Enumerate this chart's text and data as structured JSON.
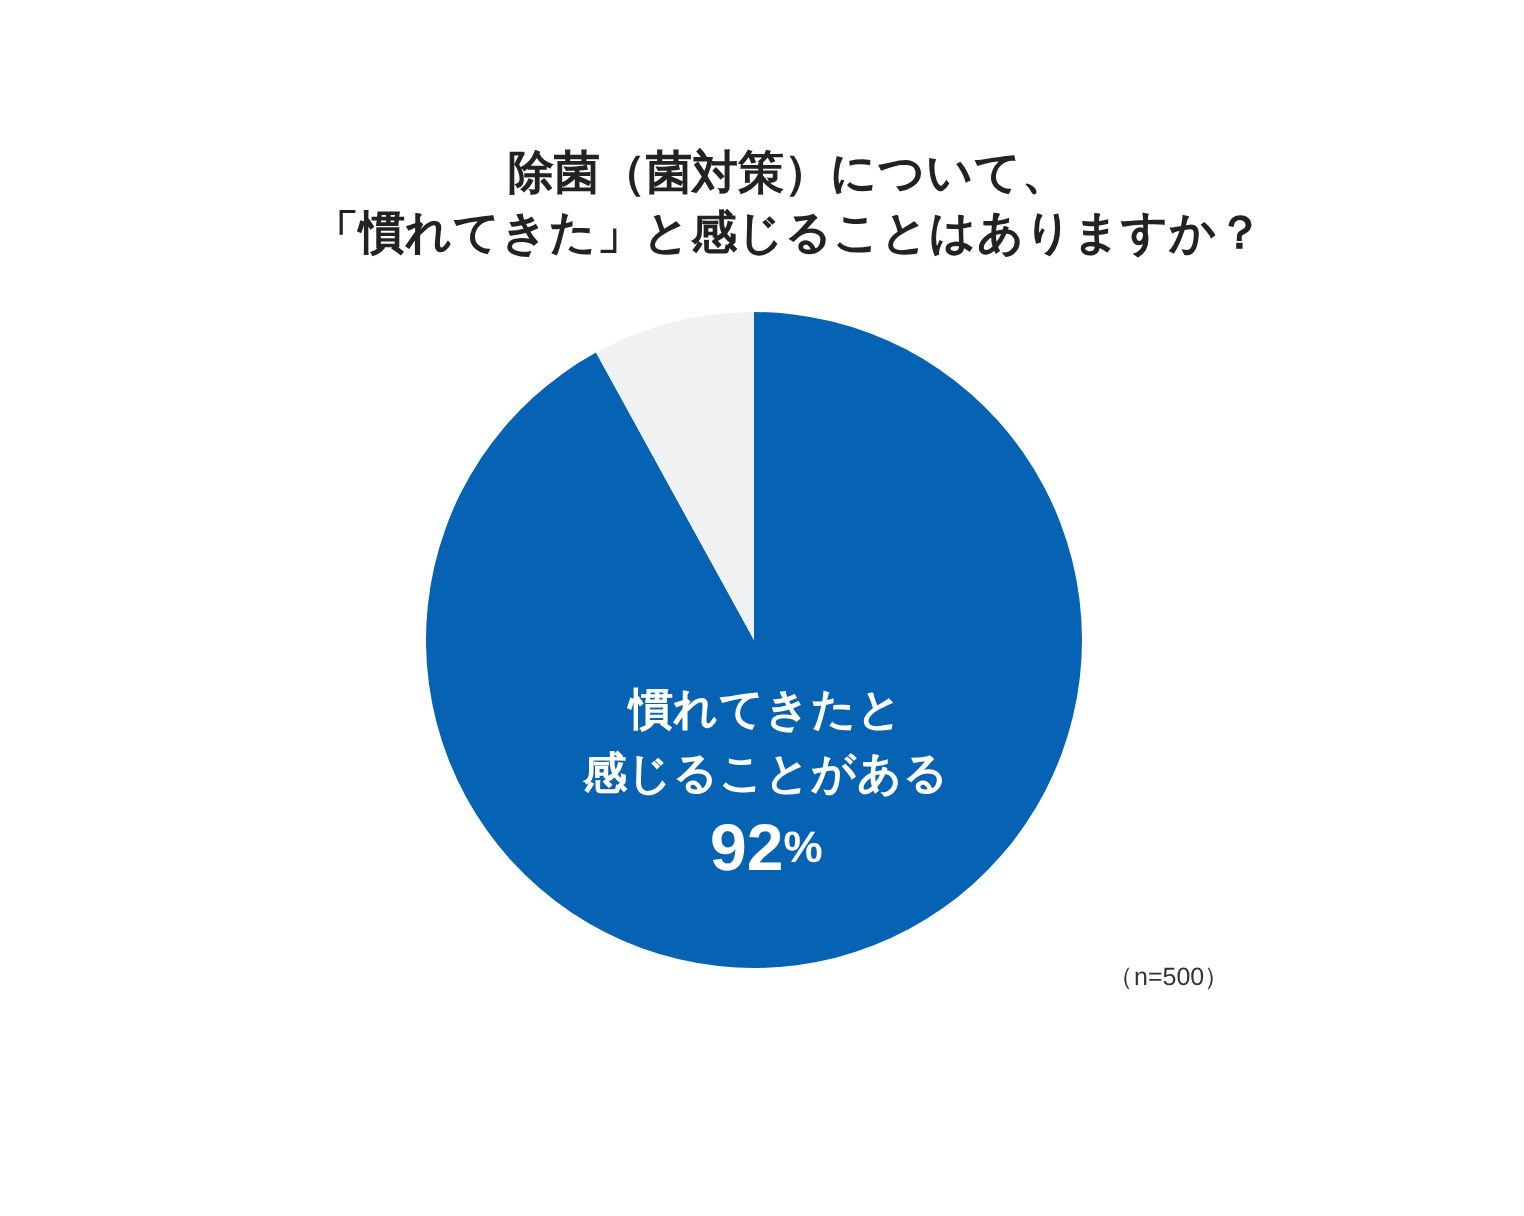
{
  "chart_data": {
    "type": "pie",
    "title": "除菌（菌対策）について、「慣れてきた」と感じることはありますか？",
    "categories": [
      "慣れてきたと感じることがある",
      null
    ],
    "values": [
      92,
      8
    ],
    "colors": [
      "#0663b3",
      "#f0f1f2"
    ],
    "value_labels": [
      "92%",
      null
    ],
    "annotations": [
      "（n=500）"
    ]
  }
}
